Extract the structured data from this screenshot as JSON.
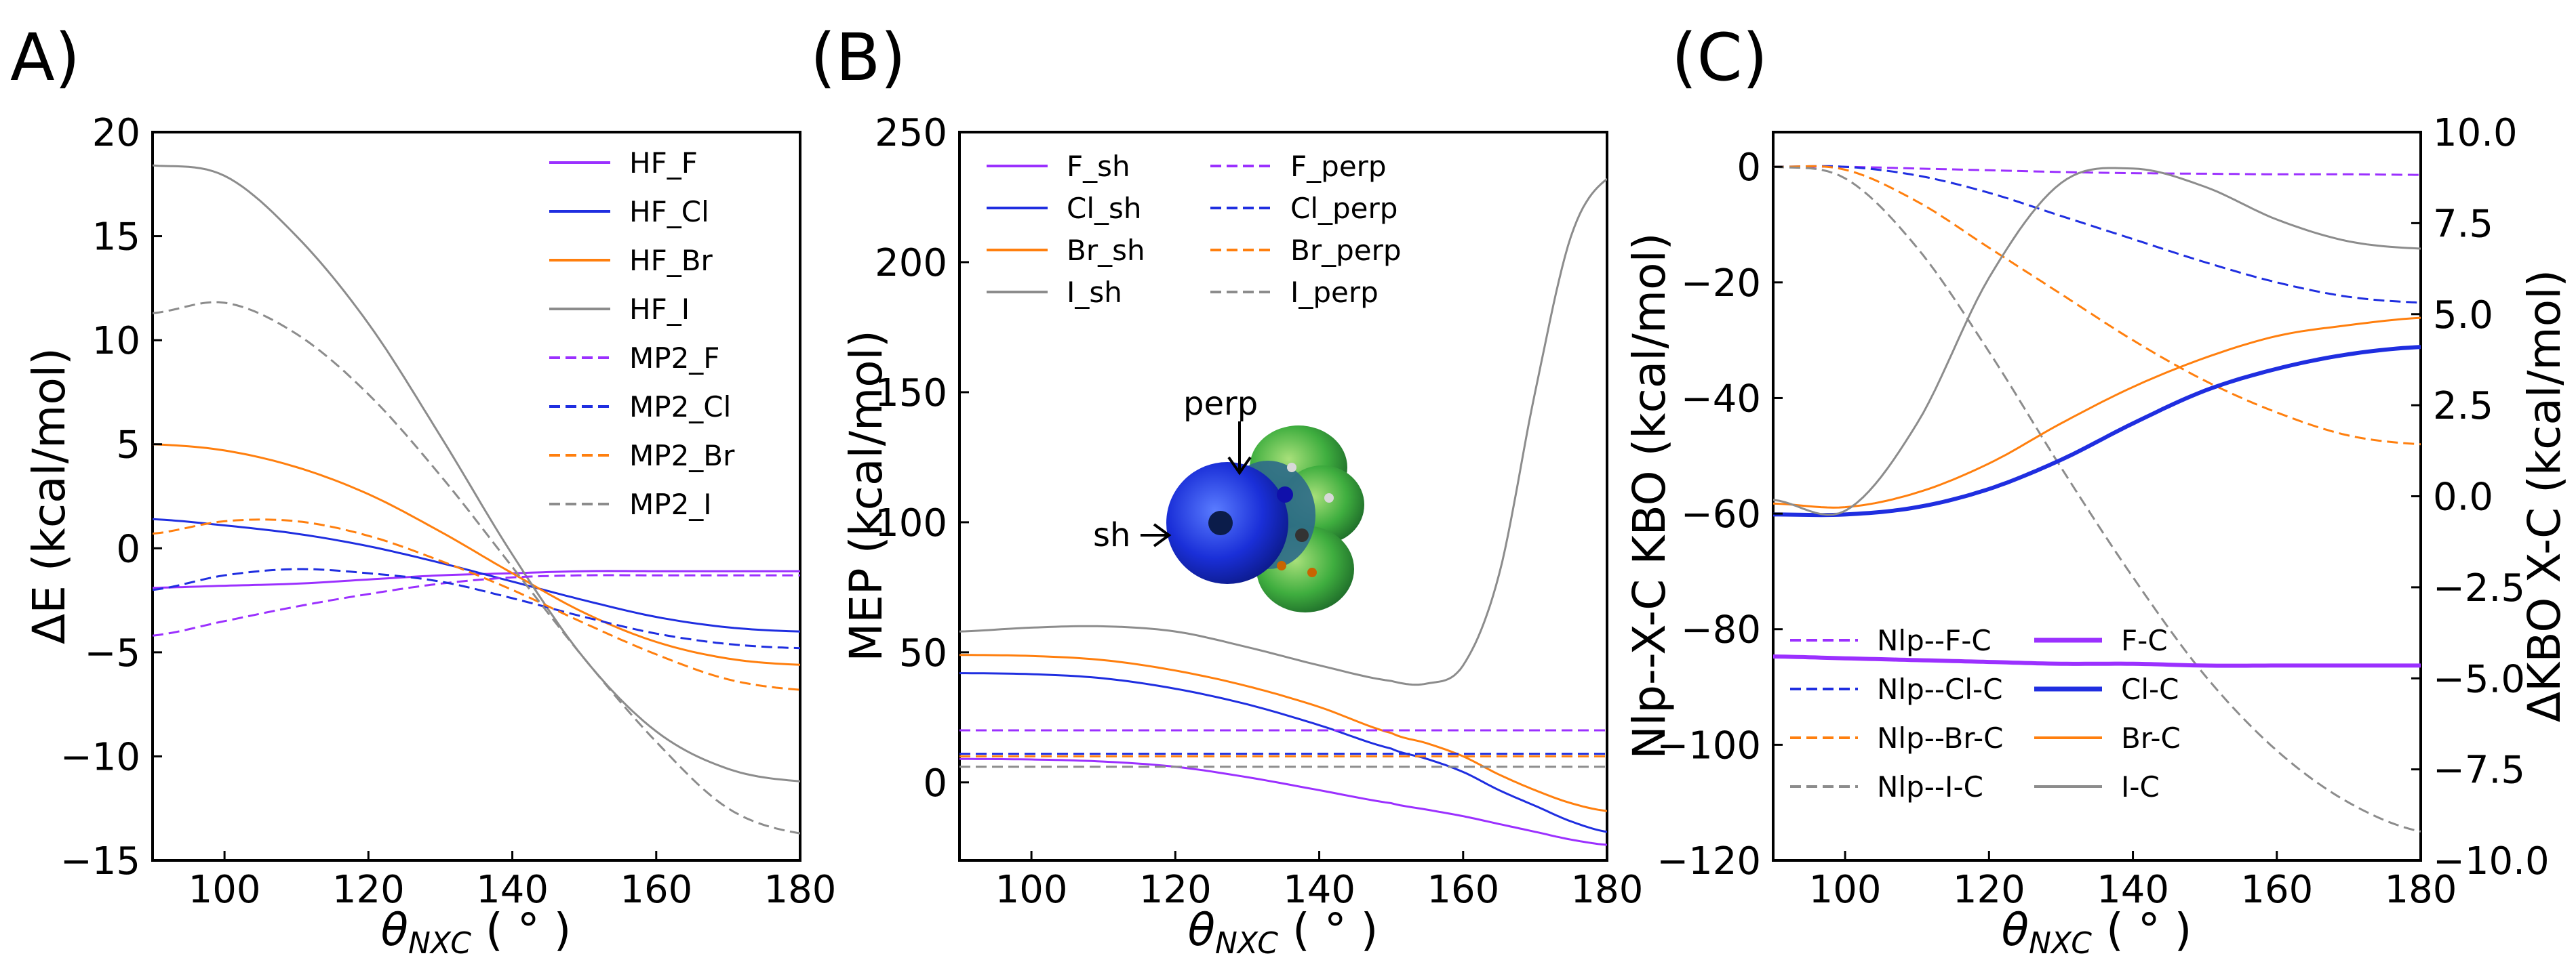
{
  "figure": {
    "panel_labels": [
      "A)",
      "(B)",
      "(C)"
    ]
  },
  "chart_data": [
    {
      "type": "line",
      "panel": "A)",
      "xlabel": "θ",
      "xlabel_sub": "NXC",
      "xlabel_unit": " ( ° )",
      "ylabel": "ΔE (kcal/mol)",
      "xlim": [
        90,
        180
      ],
      "ylim": [
        -15,
        20
      ],
      "xticks": [
        100,
        120,
        140,
        160,
        180
      ],
      "yticks": [
        -15,
        -10,
        -5,
        0,
        5,
        10,
        15,
        20
      ],
      "legend_position": "top-right",
      "x": [
        90,
        100,
        110,
        120,
        130,
        140,
        150,
        160,
        170,
        180
      ],
      "series": [
        {
          "name": "HF_F",
          "color": "#9b30ff",
          "dash": "solid",
          "width": 3,
          "values": [
            -1.9,
            -1.8,
            -1.7,
            -1.5,
            -1.3,
            -1.2,
            -1.1,
            -1.1,
            -1.1,
            -1.1
          ]
        },
        {
          "name": "HF_Cl",
          "color": "#1f2ee0",
          "dash": "solid",
          "width": 3,
          "values": [
            1.4,
            1.1,
            0.7,
            0.1,
            -0.7,
            -1.6,
            -2.5,
            -3.3,
            -3.8,
            -4.0
          ]
        },
        {
          "name": "HF_Br",
          "color": "#ff7f0e",
          "dash": "solid",
          "width": 3,
          "values": [
            5.0,
            4.7,
            3.9,
            2.6,
            0.8,
            -1.2,
            -3.1,
            -4.5,
            -5.3,
            -5.6
          ]
        },
        {
          "name": "HF_I",
          "color": "#8c8c8c",
          "dash": "solid",
          "width": 3,
          "values": [
            18.4,
            17.9,
            15.0,
            10.8,
            5.4,
            -0.3,
            -5.3,
            -8.8,
            -10.6,
            -11.2
          ]
        },
        {
          "name": "MP2_F",
          "color": "#9b30ff",
          "dash": "dashed",
          "width": 3,
          "values": [
            -4.2,
            -3.5,
            -2.8,
            -2.2,
            -1.7,
            -1.4,
            -1.3,
            -1.3,
            -1.3,
            -1.3
          ]
        },
        {
          "name": "MP2_Cl",
          "color": "#1f2ee0",
          "dash": "dashed",
          "width": 3,
          "values": [
            -2.0,
            -1.3,
            -1.0,
            -1.2,
            -1.6,
            -2.4,
            -3.3,
            -4.1,
            -4.6,
            -4.8
          ]
        },
        {
          "name": "MP2_Br",
          "color": "#ff7f0e",
          "dash": "dashed",
          "width": 3,
          "values": [
            0.7,
            1.3,
            1.3,
            0.6,
            -0.6,
            -2.0,
            -3.6,
            -5.1,
            -6.3,
            -6.8
          ]
        },
        {
          "name": "MP2_I",
          "color": "#8c8c8c",
          "dash": "dashed",
          "width": 3,
          "values": [
            11.3,
            11.8,
            10.3,
            7.4,
            3.5,
            -0.9,
            -5.3,
            -9.3,
            -12.5,
            -13.7
          ]
        }
      ]
    },
    {
      "type": "line",
      "panel": "(B)",
      "xlabel": "θ",
      "xlabel_sub": "NXC",
      "xlabel_unit": " ( ° )",
      "ylabel": "MEP (kcal/mol)",
      "xlim": [
        90,
        180
      ],
      "ylim": [
        -30,
        250
      ],
      "xticks": [
        100,
        120,
        140,
        160,
        180
      ],
      "yticks": [
        0,
        50,
        100,
        150,
        200,
        250
      ],
      "legend_position": "top-left",
      "inset_labels": [
        "perp",
        "sh"
      ],
      "x": [
        90,
        100,
        110,
        120,
        130,
        140,
        150,
        155,
        160,
        165,
        170,
        175,
        180
      ],
      "series": [
        {
          "name": "F_sh",
          "color": "#9b30ff",
          "dash": "solid",
          "width": 3,
          "values": [
            9,
            8.8,
            8,
            6,
            2,
            -3,
            -8,
            -10.5,
            -13,
            -16,
            -19,
            -22,
            -24
          ]
        },
        {
          "name": "Cl_sh",
          "color": "#1f2ee0",
          "dash": "solid",
          "width": 3,
          "values": [
            42,
            41.6,
            40,
            36,
            30,
            22,
            13,
            9,
            4,
            -3,
            -9,
            -15,
            -19
          ]
        },
        {
          "name": "Br_sh",
          "color": "#ff7f0e",
          "dash": "solid",
          "width": 3,
          "values": [
            49,
            48.6,
            47,
            43,
            37,
            29,
            19,
            15,
            10,
            3,
            -3,
            -8,
            -11
          ]
        },
        {
          "name": "I_sh",
          "color": "#8c8c8c",
          "dash": "solid",
          "width": 3,
          "values": [
            58,
            59.5,
            60,
            58,
            52,
            45,
            39,
            38,
            45,
            80,
            150,
            210,
            232
          ]
        },
        {
          "name": "F_perp",
          "color": "#9b30ff",
          "dash": "dashed",
          "width": 3,
          "values": [
            20,
            20,
            20,
            20,
            20,
            20,
            20,
            20,
            20,
            20,
            20,
            20,
            20
          ]
        },
        {
          "name": "Cl_perp",
          "color": "#1f2ee0",
          "dash": "dashed",
          "width": 3,
          "values": [
            11,
            11,
            11,
            11,
            11,
            11,
            11,
            11,
            11,
            11,
            11,
            11,
            11
          ]
        },
        {
          "name": "Br_perp",
          "color": "#ff7f0e",
          "dash": "dashed",
          "width": 3,
          "values": [
            10,
            10,
            10,
            10,
            10,
            10,
            10,
            10,
            10,
            10,
            10,
            10,
            10
          ]
        },
        {
          "name": "I_perp",
          "color": "#8c8c8c",
          "dash": "dashed",
          "width": 3,
          "values": [
            6,
            6,
            6,
            6,
            6,
            6,
            6,
            6,
            6,
            6,
            6,
            6,
            6
          ]
        }
      ]
    },
    {
      "type": "line",
      "panel": "(C)",
      "xlabel": "θ",
      "xlabel_sub": "NXC",
      "xlabel_unit": " ( ° )",
      "ylabel": "Nlp--X-C KBO (kcal/mol)",
      "ylabel_right": "ΔKBO X-C (kcal/mol)",
      "xlim": [
        90,
        180
      ],
      "ylim": [
        -120,
        6
      ],
      "ylim_right": [
        -10,
        10
      ],
      "xticks": [
        100,
        120,
        140,
        160,
        180
      ],
      "yticks": [
        0,
        -20,
        -40,
        -60,
        -80,
        -100,
        -120
      ],
      "yticks_right": [
        "10.0",
        "7.5",
        "5.0",
        "2.5",
        "0.0",
        "−2.5",
        "−5.0",
        "−7.5",
        "−10.0"
      ],
      "legend_position": "bottom-left",
      "x": [
        90,
        100,
        110,
        120,
        130,
        140,
        150,
        160,
        170,
        180
      ],
      "series": [
        {
          "name": "Nlp--F-C",
          "axis": "left",
          "color": "#9b30ff",
          "dash": "dashed",
          "width": 3,
          "values": [
            0,
            0,
            -0.3,
            -0.6,
            -0.9,
            -1.1,
            -1.2,
            -1.3,
            -1.3,
            -1.4
          ]
        },
        {
          "name": "Nlp--Cl-C",
          "axis": "left",
          "color": "#1f2ee0",
          "dash": "dashed",
          "width": 3,
          "values": [
            0,
            0,
            -1.5,
            -4.5,
            -8.5,
            -12.5,
            -16.5,
            -20,
            -22.5,
            -23.5
          ]
        },
        {
          "name": "Nlp--Br-C",
          "axis": "left",
          "color": "#ff7f0e",
          "dash": "dashed",
          "width": 3,
          "values": [
            0,
            -0.5,
            -6,
            -14,
            -22,
            -30,
            -37,
            -42.5,
            -46.5,
            -48
          ]
        },
        {
          "name": "Nlp--I-C",
          "axis": "left",
          "color": "#8c8c8c",
          "dash": "dashed",
          "width": 3,
          "values": [
            0,
            -2,
            -14,
            -32,
            -52,
            -71,
            -88,
            -101,
            -110,
            -115
          ]
        },
        {
          "name": "F-C",
          "axis": "right",
          "color": "#9b30ff",
          "dash": "solid",
          "width": 6,
          "values": [
            -4.4,
            -4.45,
            -4.5,
            -4.55,
            -4.6,
            -4.6,
            -4.65,
            -4.65,
            -4.65,
            -4.65
          ]
        },
        {
          "name": "Cl-C",
          "axis": "right",
          "color": "#1f2ee0",
          "dash": "solid",
          "width": 6,
          "values": [
            -0.5,
            -0.5,
            -0.3,
            0.2,
            1.0,
            2.0,
            2.9,
            3.5,
            3.9,
            4.1
          ]
        },
        {
          "name": "Br-C",
          "axis": "right",
          "color": "#ff7f0e",
          "dash": "solid",
          "width": 3,
          "values": [
            -0.2,
            -0.3,
            0.1,
            0.9,
            2.0,
            3.0,
            3.8,
            4.4,
            4.7,
            4.9
          ]
        },
        {
          "name": "I-C",
          "axis": "right",
          "color": "#8c8c8c",
          "dash": "solid",
          "width": 3,
          "values": [
            -0.1,
            -0.4,
            2.0,
            6.0,
            8.6,
            9.0,
            8.5,
            7.6,
            7.0,
            6.8
          ]
        }
      ]
    }
  ]
}
